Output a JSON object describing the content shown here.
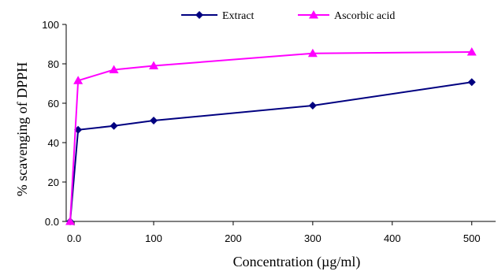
{
  "chart_data": {
    "type": "line",
    "title": "",
    "xlabel": "Concentration (µg/ml)",
    "ylabel": "% scavenging of DPPH",
    "x_tick_labels": [
      "0.0",
      "100",
      "200",
      "300",
      "400",
      "500"
    ],
    "x_tick_values": [
      0,
      100,
      200,
      300,
      400,
      500
    ],
    "y_tick_labels": [
      "0.0",
      "20",
      "40",
      "60",
      "80",
      "100"
    ],
    "y_tick_values": [
      0,
      20,
      40,
      60,
      80,
      100
    ],
    "xlim": [
      -10,
      530
    ],
    "ylim": [
      0,
      100
    ],
    "grid": false,
    "legend_position": "top",
    "series": [
      {
        "name": "Extract",
        "color": "#000080",
        "marker": "diamond",
        "x": [
          -5,
          5,
          50,
          100,
          300,
          500
        ],
        "y": [
          0,
          46.5,
          48.5,
          51.2,
          58.8,
          70.7
        ]
      },
      {
        "name": "Ascorbic acid",
        "color": "#ff00ff",
        "marker": "triangle",
        "x": [
          -5,
          5,
          50,
          100,
          300,
          500
        ],
        "y": [
          0,
          71.5,
          77,
          79,
          85.3,
          86
        ]
      }
    ]
  }
}
